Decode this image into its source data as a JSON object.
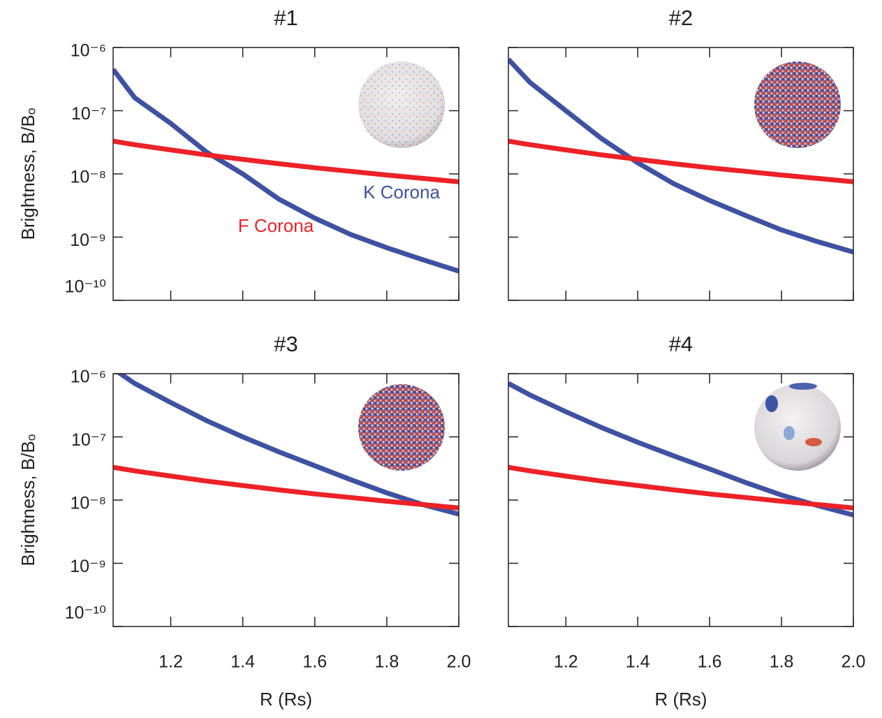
{
  "chart_data": [
    {
      "type": "line",
      "title": "#1",
      "ylabel": "Brightness, B/Bₒ",
      "log_y": true,
      "x": [
        1.04,
        1.1,
        1.2,
        1.3,
        1.4,
        1.5,
        1.6,
        1.7,
        1.8,
        1.9,
        2.0
      ],
      "series": [
        {
          "name": "K Corona",
          "color": "#3f51a3",
          "values": [
            4.5e-07,
            1.6e-07,
            6.3e-08,
            2.2e-08,
            1e-08,
            4e-09,
            2e-09,
            1.1e-09,
            6.8e-10,
            4.4e-10,
            2.9e-10
          ]
        },
        {
          "name": "F Corona",
          "color": "#ec2227",
          "values": [
            3.3e-08,
            2.9e-08,
            2.4e-08,
            2e-08,
            1.7e-08,
            1.45e-08,
            1.25e-08,
            1.1e-08,
            9.6e-09,
            8.5e-09,
            7.5e-09
          ]
        }
      ],
      "xlim": [
        1.04,
        2.0
      ],
      "xticks": [
        1.2,
        1.4,
        1.6,
        1.8,
        2.0
      ],
      "ylim": [
        1e-10,
        1e-06
      ],
      "yticks": [
        {
          "value": 1e-10,
          "label": "10⁻¹⁰"
        },
        {
          "value": 1e-09,
          "label": "10⁻⁹"
        },
        {
          "value": 1e-08,
          "label": "10⁻⁸"
        },
        {
          "value": 1e-07,
          "label": "10⁻⁷"
        },
        {
          "value": 1e-06,
          "label": "10⁻⁶"
        }
      ]
    },
    {
      "type": "line",
      "title": "#2",
      "log_y": true,
      "x": [
        1.04,
        1.1,
        1.2,
        1.3,
        1.4,
        1.5,
        1.6,
        1.7,
        1.8,
        1.9,
        2.0
      ],
      "series": [
        {
          "color": "#3f51a3",
          "values": [
            6.5e-07,
            2.8e-07,
            1e-07,
            3.6e-08,
            1.5e-08,
            7e-09,
            3.8e-09,
            2.2e-09,
            1.3e-09,
            8.5e-10,
            5.8e-10
          ]
        },
        {
          "color": "#ec2227",
          "values": [
            3.3e-08,
            2.9e-08,
            2.4e-08,
            2e-08,
            1.7e-08,
            1.45e-08,
            1.25e-08,
            1.1e-08,
            9.6e-09,
            8.5e-09,
            7.5e-09
          ]
        }
      ],
      "xlim": [
        1.04,
        2.0
      ],
      "xticks": [
        1.2,
        1.4,
        1.6,
        1.8,
        2.0
      ],
      "ylim": [
        1e-10,
        1e-06
      ],
      "yticks": [
        1e-10,
        1e-09,
        1e-08,
        1e-07,
        1e-06
      ]
    },
    {
      "type": "line",
      "title": "#3",
      "ylabel": "Brightness, B/Bₒ",
      "xlabel": "R (Rs)",
      "log_y": true,
      "x": [
        1.04,
        1.1,
        1.2,
        1.3,
        1.4,
        1.5,
        1.6,
        1.7,
        1.8,
        1.9,
        2.0
      ],
      "series": [
        {
          "color": "#3f51a3",
          "values": [
            1.2e-06,
            7e-07,
            3.5e-07,
            1.8e-07,
            1e-07,
            5.8e-08,
            3.5e-08,
            2.1e-08,
            1.3e-08,
            8.5e-09,
            6e-09
          ]
        },
        {
          "color": "#ec2227",
          "values": [
            3.3e-08,
            2.9e-08,
            2.4e-08,
            2e-08,
            1.7e-08,
            1.45e-08,
            1.25e-08,
            1.1e-08,
            9.6e-09,
            8.5e-09,
            7.5e-09
          ]
        }
      ],
      "xlim": [
        1.04,
        2.0
      ],
      "xticks": [
        1.2,
        1.4,
        1.6,
        1.8,
        {
          "value": 2.0,
          "label": "2.0"
        }
      ],
      "ylim": [
        1e-10,
        1e-06
      ],
      "yticks": [
        {
          "value": 1e-10,
          "label": "10⁻¹⁰"
        },
        {
          "value": 1e-09,
          "label": "10⁻⁹"
        },
        {
          "value": 1e-08,
          "label": "10⁻⁸"
        },
        {
          "value": 1e-07,
          "label": "10⁻⁷"
        },
        {
          "value": 1e-06,
          "label": "10⁻⁶"
        }
      ]
    },
    {
      "type": "line",
      "title": "#4",
      "xlabel": "R (Rs)",
      "log_y": true,
      "x": [
        1.04,
        1.1,
        1.2,
        1.3,
        1.4,
        1.5,
        1.6,
        1.7,
        1.8,
        1.9,
        2.0
      ],
      "series": [
        {
          "color": "#3f51a3",
          "values": [
            7e-07,
            4.6e-07,
            2.5e-07,
            1.4e-07,
            8.2e-08,
            5e-08,
            3.1e-08,
            1.9e-08,
            1.2e-08,
            8.2e-09,
            5.8e-09
          ]
        },
        {
          "color": "#ec2227",
          "values": [
            3.3e-08,
            2.9e-08,
            2.4e-08,
            2e-08,
            1.7e-08,
            1.45e-08,
            1.25e-08,
            1.1e-08,
            9.6e-09,
            8.5e-09,
            7.5e-09
          ]
        }
      ],
      "xlim": [
        1.04,
        2.0
      ],
      "xticks": [
        1.2,
        1.4,
        1.6,
        1.8,
        {
          "value": 2.0,
          "label": "2.0"
        }
      ],
      "ylim": [
        1e-10,
        1e-06
      ],
      "yticks": [
        1e-10,
        1e-09,
        1e-08,
        1e-07,
        1e-06
      ]
    }
  ]
}
